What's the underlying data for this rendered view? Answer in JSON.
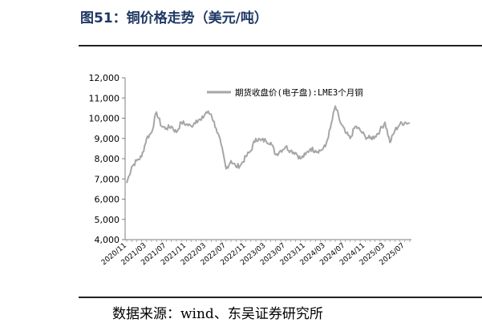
{
  "figure": {
    "title": "图51：铜价格走势（美元/吨）",
    "source": "数据来源：wind、东吴证券研究所"
  },
  "colors": {
    "title": "#1f3864",
    "series": "#a6a6a6",
    "axis": "#7f7f7f"
  },
  "chart_data": {
    "type": "line",
    "legend_position": "top-right",
    "grid": false,
    "ylim": [
      4000,
      12000
    ],
    "yticks": [
      4000,
      5000,
      6000,
      7000,
      8000,
      9000,
      10000,
      11000,
      12000
    ],
    "ytick_labels": [
      "4,000",
      "5,000",
      "6,000",
      "7,000",
      "8,000",
      "9,000",
      "10,000",
      "11,000",
      "12,000"
    ],
    "xtick_labels": [
      "2020/11",
      "2021/03",
      "2021/07",
      "2021/11",
      "2022/03",
      "2022/07",
      "2022/11",
      "2023/03",
      "2023/07",
      "2023/11",
      "2024/03",
      "2024/07",
      "2024/11",
      "2025/03",
      "2025/07"
    ],
    "x": [
      "2020/11",
      "2020/12",
      "2021/01",
      "2021/02",
      "2021/03",
      "2021/04",
      "2021/05",
      "2021/06",
      "2021/07",
      "2021/08",
      "2021/09",
      "2021/10",
      "2021/11",
      "2021/12",
      "2022/01",
      "2022/02",
      "2022/03",
      "2022/04",
      "2022/05",
      "2022/06",
      "2022/07",
      "2022/08",
      "2022/09",
      "2022/10",
      "2022/11",
      "2022/12",
      "2023/01",
      "2023/02",
      "2023/03",
      "2023/04",
      "2023/05",
      "2023/06",
      "2023/07",
      "2023/08",
      "2023/09",
      "2023/10",
      "2023/11",
      "2023/12",
      "2024/01",
      "2024/02",
      "2024/03",
      "2024/04",
      "2024/05",
      "2024/06",
      "2024/07",
      "2024/08",
      "2024/09",
      "2024/10",
      "2024/11",
      "2024/12",
      "2025/01",
      "2025/02",
      "2025/03",
      "2025/04",
      "2025/05",
      "2025/06",
      "2025/07",
      "2025/08"
    ],
    "series": [
      {
        "name": "期货收盘价(电子盘):LME3个月铜",
        "values": [
          6800,
          7600,
          7900,
          8100,
          9000,
          9300,
          10300,
          9600,
          9500,
          9600,
          9300,
          9800,
          9700,
          9600,
          9900,
          9900,
          10300,
          10200,
          9500,
          8700,
          7500,
          7900,
          7600,
          7700,
          8100,
          8400,
          9000,
          8900,
          8900,
          8800,
          8200,
          8400,
          8600,
          8400,
          8300,
          8000,
          8200,
          8500,
          8400,
          8400,
          8600,
          9500,
          10600,
          9800,
          9300,
          9000,
          9600,
          9400,
          9100,
          9000,
          9100,
          9400,
          9800,
          8800,
          9400,
          9700,
          9800,
          9750
        ]
      }
    ]
  }
}
